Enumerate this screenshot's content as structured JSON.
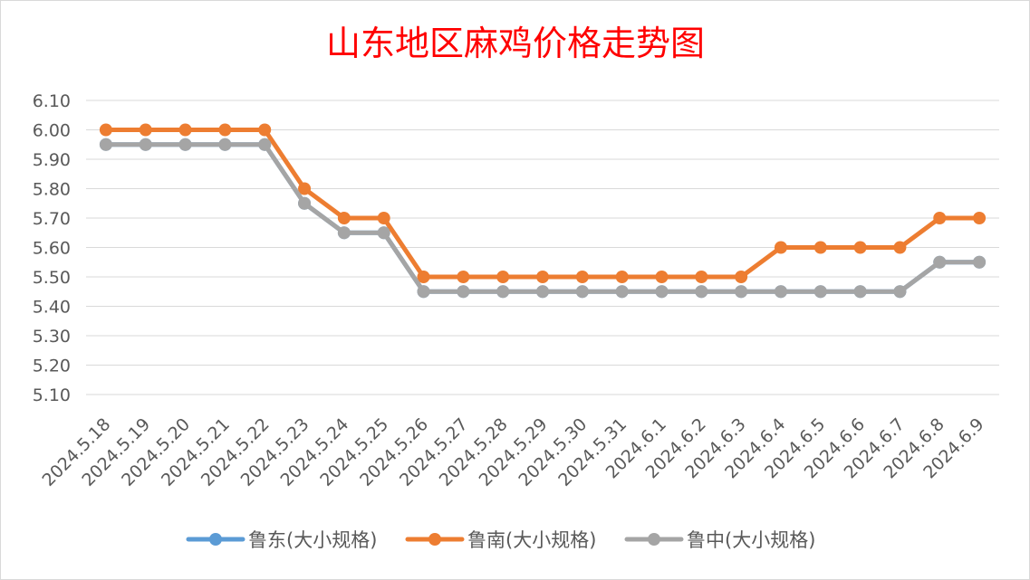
{
  "chart_data": {
    "type": "line",
    "title": "山东地区麻鸡价格走势图",
    "categories": [
      "2024.5.18",
      "2024.5.19",
      "2024.5.20",
      "2024.5.21",
      "2024.5.22",
      "2024.5.23",
      "2024.5.24",
      "2024.5.25",
      "2024.5.26",
      "2024.5.27",
      "2024.5.28",
      "2024.5.29",
      "2024.5.30",
      "2024.5.31",
      "2024.6.1",
      "2024.6.2",
      "2024.6.3",
      "2024.6.4",
      "2024.6.5",
      "2024.6.6",
      "2024.6.7",
      "2024.6.8",
      "2024.6.9"
    ],
    "ylim": [
      5.1,
      6.1
    ],
    "yticks": [
      "6.10",
      "6.00",
      "5.90",
      "5.80",
      "5.70",
      "5.60",
      "5.50",
      "5.40",
      "5.30",
      "5.20",
      "5.10"
    ],
    "grid": true,
    "legend_position": "bottom",
    "series": [
      {
        "name": "鲁东(大小规格)",
        "color": "#5b9bd5",
        "values": [
          5.95,
          5.95,
          5.95,
          5.95,
          5.95,
          5.75,
          5.65,
          5.65,
          5.45,
          5.45,
          5.45,
          5.45,
          5.45,
          5.45,
          5.45,
          5.45,
          5.45,
          5.45,
          5.45,
          5.45,
          5.45,
          5.55,
          5.55
        ]
      },
      {
        "name": "鲁南(大小规格)",
        "color": "#ed7d31",
        "values": [
          6.0,
          6.0,
          6.0,
          6.0,
          6.0,
          5.8,
          5.7,
          5.7,
          5.5,
          5.5,
          5.5,
          5.5,
          5.5,
          5.5,
          5.5,
          5.5,
          5.5,
          5.6,
          5.6,
          5.6,
          5.6,
          5.7,
          5.7
        ]
      },
      {
        "name": "鲁中(大小规格)",
        "color": "#a5a5a5",
        "values": [
          5.95,
          5.95,
          5.95,
          5.95,
          5.95,
          5.75,
          5.65,
          5.65,
          5.45,
          5.45,
          5.45,
          5.45,
          5.45,
          5.45,
          5.45,
          5.45,
          5.45,
          5.45,
          5.45,
          5.45,
          5.45,
          5.55,
          5.55
        ]
      }
    ]
  }
}
